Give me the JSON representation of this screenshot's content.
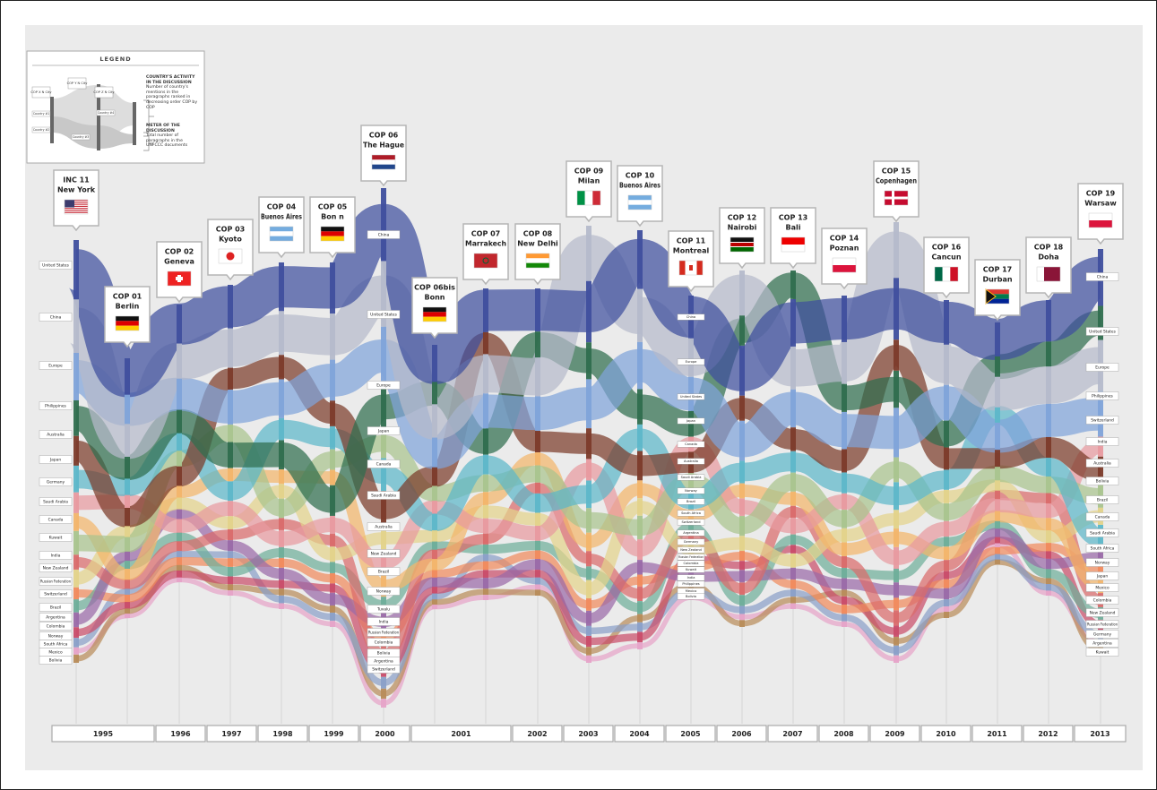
{
  "legend": {
    "title": "LEGEND",
    "activity_title": "COUNTRY'S ACTIVITY IN THE DISCUSSION",
    "activity_text": "Number of country's mentions in the paragraphs ranked in decreasing order COP by COP",
    "meter_title": "METER OF THE DISCUSSION",
    "meter_text": "Total number of paragraphs in the UNFCCC documents",
    "sample_cops": [
      "COP X N City",
      "COP Y N City",
      "COP Z N City"
    ],
    "sample_countries": [
      "Country #1",
      "Country #2",
      "Country #3",
      "Country #4"
    ]
  },
  "conferences": [
    {
      "label": "INC 11",
      "city": "New York"
    },
    {
      "label": "COP 01",
      "city": "Berlin"
    },
    {
      "label": "COP 02",
      "city": "Geneva"
    },
    {
      "label": "COP 03",
      "city": "Kyoto"
    },
    {
      "label": "COP 04",
      "city": "Buenos Aires"
    },
    {
      "label": "COP 05",
      "city": "Bon n"
    },
    {
      "label": "COP 06",
      "city": "The Hague"
    },
    {
      "label": "COP 06bis",
      "city": "Bonn"
    },
    {
      "label": "COP 07",
      "city": "Marrakech"
    },
    {
      "label": "COP 08",
      "city": "New Delhi"
    },
    {
      "label": "COP 09",
      "city": "Milan"
    },
    {
      "label": "COP 10",
      "city": "Buenos Aires"
    },
    {
      "label": "COP 11",
      "city": "Montreal"
    },
    {
      "label": "COP 12",
      "city": "Nairobi"
    },
    {
      "label": "COP 13",
      "city": "Bali"
    },
    {
      "label": "COP 14",
      "city": "Poznan"
    },
    {
      "label": "COP 15",
      "city": "Copenhagen"
    },
    {
      "label": "COP 16",
      "city": "Cancun"
    },
    {
      "label": "COP 17",
      "city": "Durban"
    },
    {
      "label": "COP 18",
      "city": "Doha"
    },
    {
      "label": "COP 19",
      "city": "Warsaw"
    }
  ],
  "years": [
    "1995",
    "1996",
    "1997",
    "1998",
    "1999",
    "2000",
    "2001",
    "2002",
    "2003",
    "2004",
    "2005",
    "2006",
    "2007",
    "2008",
    "2009",
    "2010",
    "2011",
    "2012",
    "2013"
  ],
  "country_labels": {
    "inc11": [
      "United States",
      "China",
      "Europe",
      "Philippines",
      "Australia",
      "Japan",
      "Germany",
      "Saudi Arabia",
      "Canada",
      "Kuwait",
      "India",
      "New Zealand",
      "Russian Federation",
      "Switzerland",
      "Brazil",
      "Argentina",
      "Colombia",
      "Norway",
      "South Africa",
      "Mexico",
      "Bolivia"
    ],
    "cop06": [
      "China",
      "United States",
      "Europe",
      "Japan",
      "Canada",
      "Saudi Arabia",
      "Australia",
      "New Zealand",
      "Brazil",
      "Norway",
      "Tuvalu",
      "India",
      "Russian Federation",
      "Colombia",
      "Bolivia",
      "Argentina",
      "Switzerland"
    ],
    "cop11": [
      "China",
      "Europe",
      "United States",
      "Japan",
      "Canada",
      "Australia",
      "Saudi Arabia",
      "Norway",
      "Brazil",
      "South Africa",
      "Switzerland",
      "Argentina",
      "Germany",
      "New Zealand",
      "Russian Federation",
      "Colombia",
      "Kuwait",
      "India",
      "Philippines",
      "Mexico",
      "Bolivia"
    ],
    "cop19": [
      "China",
      "United States",
      "Europe",
      "Philippines",
      "Switzerland",
      "India",
      "Australia",
      "Bolivia",
      "Brazil",
      "Canada",
      "Saudi Arabia",
      "South Africa",
      "Norway",
      "Japan",
      "Mexico",
      "Colombia",
      "New Zealand",
      "Russian Federation",
      "Germany",
      "Argentina",
      "Kuwait"
    ]
  }
}
